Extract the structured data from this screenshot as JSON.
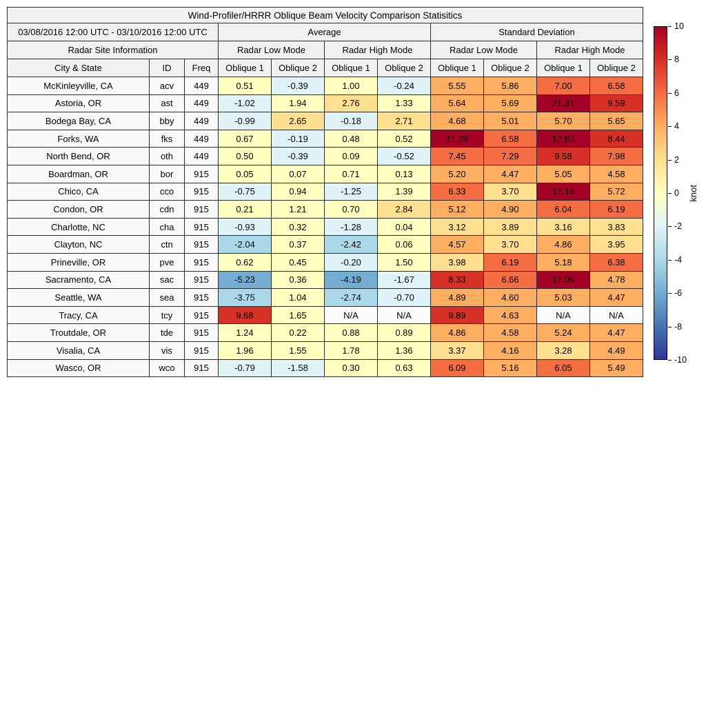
{
  "title": "Wind-Profiler/HRRR Oblique Beam Velocity Comparison Statisitics",
  "header": {
    "date_range": "03/08/2016 12:00 UTC - 03/10/2016 12:00 UTC",
    "group_average": "Average",
    "group_stddev": "Standard Deviation",
    "site_info": "Radar Site Information",
    "low_mode": "Radar Low Mode",
    "high_mode": "Radar High Mode",
    "city_state": "City & State",
    "id": "ID",
    "freq": "Freq",
    "oblique1": "Oblique 1",
    "oblique2": "Oblique 2"
  },
  "colorbar": {
    "unit": "knot",
    "min": -10,
    "max": 10,
    "ticks": [
      10,
      8,
      6,
      4,
      2,
      0,
      -2,
      -4,
      -6,
      -8,
      -10
    ],
    "colors": [
      "#a50026",
      "#d73027",
      "#f46d43",
      "#fdae61",
      "#fee090",
      "#ffffbf",
      "#e0f3f8",
      "#abd9e9",
      "#74add1",
      "#4575b4",
      "#313695"
    ]
  },
  "chart_data": {
    "type": "table",
    "na_label": "N/A",
    "na_color": "#fbfbfb",
    "value_groups": [
      "Average Radar Low Mode Oblique 1",
      "Average Radar Low Mode Oblique 2",
      "Average Radar High Mode Oblique 1",
      "Average Radar High Mode Oblique 2",
      "Standard Deviation Radar Low Mode Oblique 1",
      "Standard Deviation Radar Low Mode Oblique 2",
      "Standard Deviation Radar High Mode Oblique 1",
      "Standard Deviation Radar High Mode Oblique 2"
    ],
    "rows": [
      {
        "city": "McKinleyville, CA",
        "id": "acv",
        "freq": "449",
        "values": [
          0.51,
          -0.39,
          1.0,
          -0.24,
          5.55,
          5.86,
          7.0,
          6.58
        ]
      },
      {
        "city": "Astoria, OR",
        "id": "ast",
        "freq": "449",
        "values": [
          -1.02,
          1.94,
          2.76,
          1.33,
          5.64,
          5.69,
          21.31,
          9.59
        ]
      },
      {
        "city": "Bodega Bay, CA",
        "id": "bby",
        "freq": "449",
        "values": [
          -0.99,
          2.65,
          -0.18,
          2.71,
          4.68,
          5.01,
          5.7,
          5.65
        ]
      },
      {
        "city": "Forks, WA",
        "id": "fks",
        "freq": "449",
        "values": [
          0.67,
          -0.19,
          0.48,
          0.52,
          11.29,
          6.58,
          12.83,
          8.44
        ]
      },
      {
        "city": "North Bend, OR",
        "id": "oth",
        "freq": "449",
        "values": [
          0.5,
          -0.39,
          0.09,
          -0.52,
          7.45,
          7.29,
          9.58,
          7.98
        ]
      },
      {
        "city": "Boardman, OR",
        "id": "bor",
        "freq": "915",
        "values": [
          0.05,
          0.07,
          0.71,
          0.13,
          5.2,
          4.47,
          5.05,
          4.58
        ]
      },
      {
        "city": "Chico, CA",
        "id": "cco",
        "freq": "915",
        "values": [
          -0.75,
          0.94,
          -1.25,
          1.39,
          6.33,
          3.7,
          12.16,
          5.72
        ]
      },
      {
        "city": "Condon, OR",
        "id": "cdn",
        "freq": "915",
        "values": [
          0.21,
          1.21,
          0.7,
          2.84,
          5.12,
          4.9,
          6.04,
          6.19
        ]
      },
      {
        "city": "Charlotte, NC",
        "id": "cha",
        "freq": "915",
        "values": [
          -0.93,
          0.32,
          -1.28,
          0.04,
          3.12,
          3.89,
          3.16,
          3.83
        ]
      },
      {
        "city": "Clayton, NC",
        "id": "ctn",
        "freq": "915",
        "values": [
          -2.04,
          0.37,
          -2.42,
          0.06,
          4.57,
          3.7,
          4.86,
          3.95
        ]
      },
      {
        "city": "Prineville, OR",
        "id": "pve",
        "freq": "915",
        "values": [
          0.62,
          0.45,
          -0.2,
          1.5,
          3.98,
          6.19,
          5.18,
          6.38
        ]
      },
      {
        "city": "Sacramento, CA",
        "id": "sac",
        "freq": "915",
        "values": [
          -5.23,
          0.36,
          -4.19,
          -1.67,
          8.33,
          6.66,
          12.09,
          4.78
        ]
      },
      {
        "city": "Seattle, WA",
        "id": "sea",
        "freq": "915",
        "values": [
          -3.75,
          1.04,
          -2.74,
          -0.7,
          4.89,
          4.6,
          5.03,
          4.47
        ]
      },
      {
        "city": "Tracy, CA",
        "id": "tcy",
        "freq": "915",
        "values": [
          9.68,
          1.65,
          null,
          null,
          9.89,
          4.63,
          null,
          null
        ]
      },
      {
        "city": "Troutdale, OR",
        "id": "tde",
        "freq": "915",
        "values": [
          1.24,
          0.22,
          0.88,
          0.89,
          4.86,
          4.58,
          5.24,
          4.47
        ]
      },
      {
        "city": "Visalia, CA",
        "id": "vis",
        "freq": "915",
        "values": [
          1.96,
          1.55,
          1.78,
          1.36,
          3.37,
          4.16,
          3.28,
          4.49
        ]
      },
      {
        "city": "Wasco, OR",
        "id": "wco",
        "freq": "915",
        "values": [
          -0.79,
          -1.58,
          0.3,
          0.63,
          6.09,
          5.16,
          6.05,
          5.49
        ]
      }
    ]
  }
}
